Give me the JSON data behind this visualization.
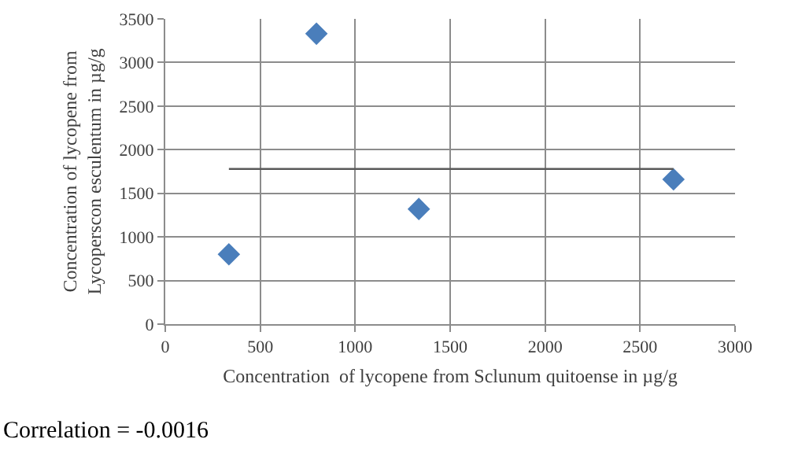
{
  "chart_data": {
    "type": "scatter",
    "xlabel": "Concentration  of lycopene from Sclunum quitoense in µg/g",
    "ylabel": "Concentration of lycopene from\nLycoperscon esculentum in µg/g",
    "series": [
      {
        "color": "#4a7ebb",
        "x": [
          335,
          796,
          1335,
          2676
        ],
        "values": [
          800,
          3330,
          1320,
          1660
        ],
        "marker": "diamond"
      },
      {
        "type": "line",
        "color": "#595959",
        "x": [
          335,
          2676
        ],
        "values": [
          1780,
          1780
        ],
        "marker": "none"
      }
    ],
    "xlim": [
      0,
      3000
    ],
    "xticks": [
      0,
      500,
      1000,
      1500,
      2000,
      2500,
      3000
    ],
    "ylim": [
      0,
      3500
    ],
    "yticks": [
      0,
      500,
      1000,
      1500,
      2000,
      2500,
      3000,
      3500
    ],
    "grid": true,
    "annotations": [
      "Correlation = -0.0016"
    ]
  }
}
